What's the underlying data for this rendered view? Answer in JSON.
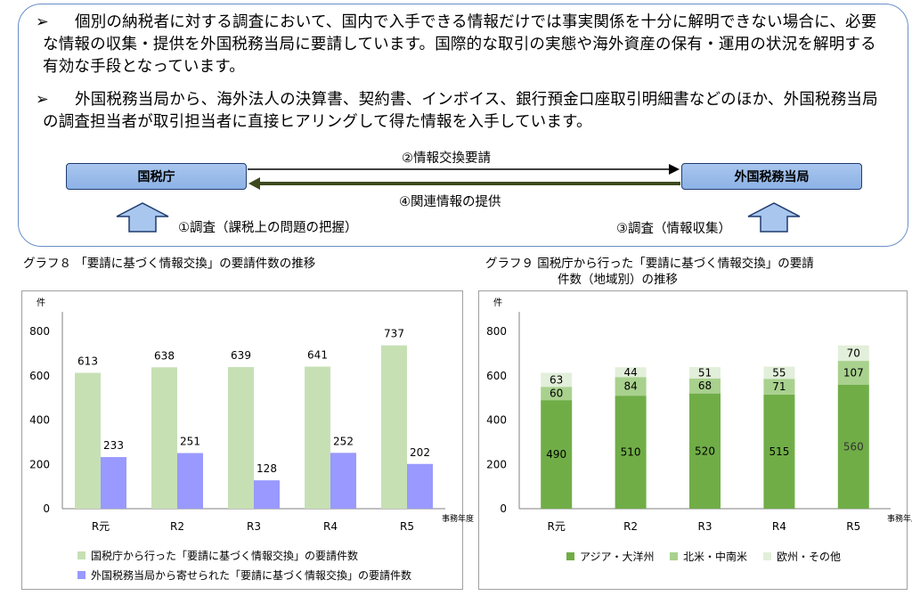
{
  "info": {
    "bullet_mark": "➢",
    "bullet1": "個別の納税者に対する調査において、国内で入手できる情報だけでは事実関係を十分に解明できない場合に、必要な情報の収集・提供を外国税務当局に要請しています。国際的な取引の実態や海外資産の保有・運用の状況を解明する有効な手段となっています。",
    "bullet2": "外国税務当局から、海外法人の決算書、契約書、インボイス、銀行預金口座取引明細書などのほか、外国税務当局の調査担当者が取引担当者に直接ヒアリングして得た情報を入手しています。",
    "agency_left": "国税庁",
    "agency_right": "外国税務当局",
    "flow_request": "②情報交換要請",
    "flow_provide": "④関連情報の提供",
    "flow_investigate_left": "①調査（課税上の問題の把握）",
    "flow_investigate_right": "③調査（情報収集）",
    "colors": {
      "arrow_fill": "#a9c6ee",
      "arrow_stroke": "#1f3c6e",
      "border": "#6a8fc7"
    }
  },
  "chart_data": [
    {
      "type": "bar",
      "title": "グラフ８ 「要請に基づく情報交換」の要請件数の推移",
      "ylabel": "件",
      "xlabel": "事務年度",
      "ylim": [
        0,
        800
      ],
      "yticks": [
        0,
        200,
        400,
        600,
        800
      ],
      "categories": [
        "R元",
        "R2",
        "R3",
        "R4",
        "R5"
      ],
      "series": [
        {
          "name": "国税庁から行った「要請に基づく情報交換」の要請件数",
          "values": [
            613,
            638,
            639,
            641,
            737
          ],
          "color": "#c6e0b4"
        },
        {
          "name": "外国税務当局から寄せられた「要請に基づく情報交換」の要請件数",
          "values": [
            233,
            251,
            128,
            252,
            202
          ],
          "color": "#9999ff"
        }
      ],
      "legend": "bottom"
    },
    {
      "type": "bar",
      "stacked": true,
      "title": "グラフ９ 国税庁から行った「要請に基づく情報交換」の要請件数（地域別）の推移",
      "title_line1": "グラフ９ 国税庁から行った「要請に基づく情報交換」の要請",
      "title_line2": "件数（地域別）の推移",
      "ylabel": "件",
      "xlabel": "事務年度",
      "ylim": [
        0,
        800
      ],
      "yticks": [
        0,
        200,
        400,
        600,
        800
      ],
      "categories": [
        "R元",
        "R2",
        "R3",
        "R4",
        "R5"
      ],
      "series": [
        {
          "name": "アジア・大洋州",
          "values": [
            490,
            510,
            520,
            515,
            560
          ],
          "color": "#70ad47"
        },
        {
          "name": "北米・中南米",
          "values": [
            60,
            84,
            68,
            71,
            107
          ],
          "color": "#a9d18e"
        },
        {
          "name": "欧州・その他",
          "values": [
            63,
            44,
            51,
            55,
            70
          ],
          "color": "#e2efda"
        }
      ],
      "legend": "bottom"
    }
  ]
}
